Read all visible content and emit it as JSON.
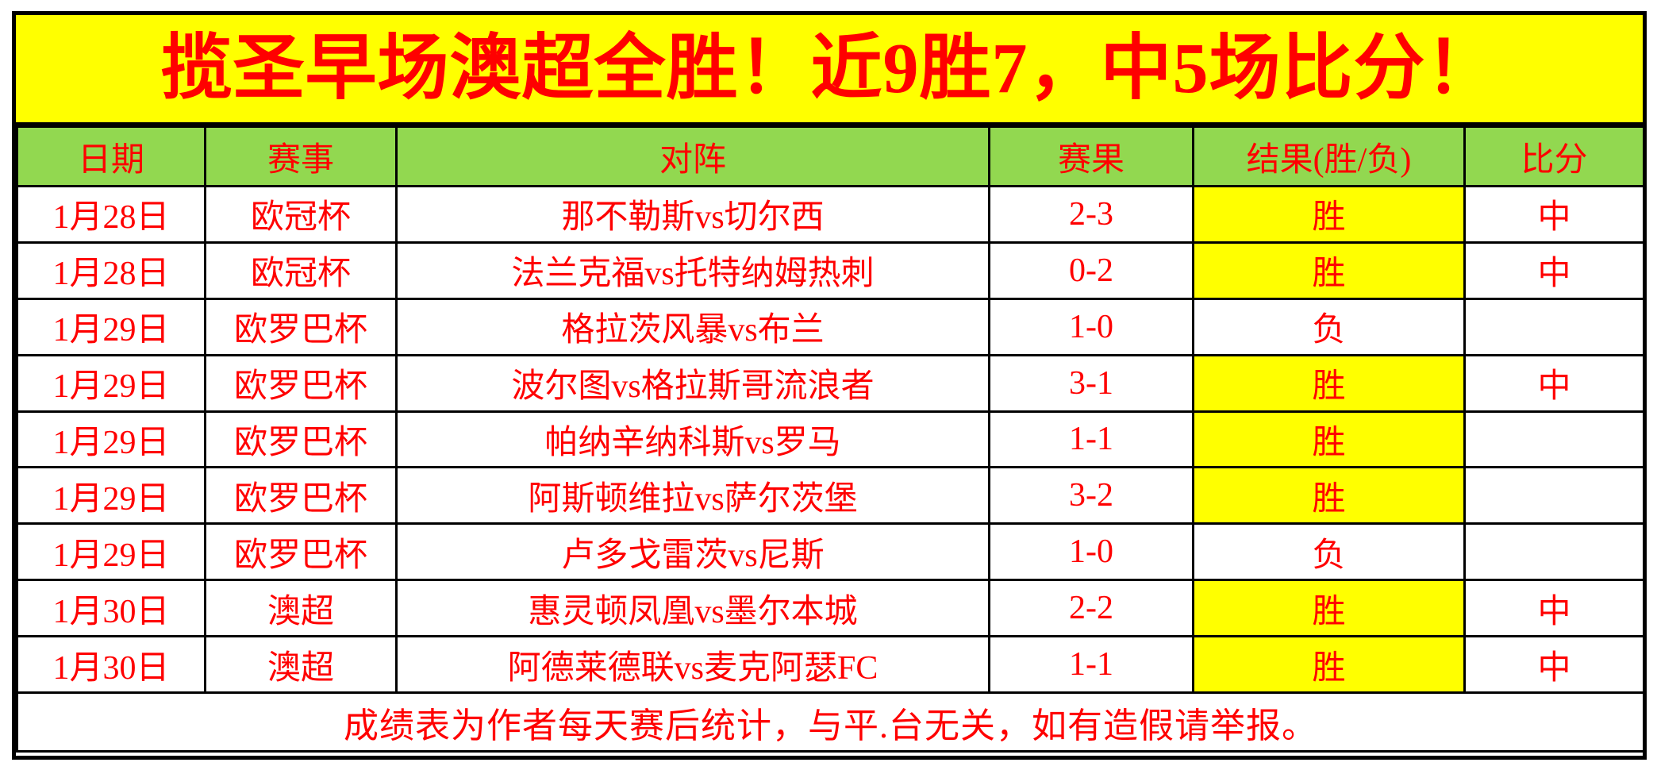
{
  "title": "揽圣早场澳超全胜！近9胜7，中5场比分！",
  "colors": {
    "banner_bg": "#FFFF00",
    "header_bg": "#92D850",
    "accent_red": "#FF0000",
    "win_cell_bg": "#FFFF00",
    "lose_text": "#000000",
    "border": "#000000"
  },
  "table": {
    "columns": [
      "日期",
      "赛事",
      "对阵",
      "赛果",
      "结果(胜/负)",
      "比分"
    ],
    "rows": [
      {
        "date": "1月28日",
        "competition": "欧冠杯",
        "match": "那不勒斯vs切尔西",
        "score": "2-3",
        "result": "胜",
        "result_win": true,
        "hit": "中"
      },
      {
        "date": "1月28日",
        "competition": "欧冠杯",
        "match": "法兰克福vs托特纳姆热刺",
        "score": "0-2",
        "result": "胜",
        "result_win": true,
        "hit": "中"
      },
      {
        "date": "1月29日",
        "competition": "欧罗巴杯",
        "match": "格拉茨风暴vs布兰",
        "score": "1-0",
        "result": "负",
        "result_win": false,
        "hit": ""
      },
      {
        "date": "1月29日",
        "competition": "欧罗巴杯",
        "match": "波尔图vs格拉斯哥流浪者",
        "score": "3-1",
        "result": "胜",
        "result_win": true,
        "hit": "中"
      },
      {
        "date": "1月29日",
        "competition": "欧罗巴杯",
        "match": "帕纳辛纳科斯vs罗马",
        "score": "1-1",
        "result": "胜",
        "result_win": true,
        "hit": ""
      },
      {
        "date": "1月29日",
        "competition": "欧罗巴杯",
        "match": "阿斯顿维拉vs萨尔茨堡",
        "score": "3-2",
        "result": "胜",
        "result_win": true,
        "hit": ""
      },
      {
        "date": "1月29日",
        "competition": "欧罗巴杯",
        "match": "卢多戈雷茨vs尼斯",
        "score": "1-0",
        "result": "负",
        "result_win": false,
        "hit": ""
      },
      {
        "date": "1月30日",
        "competition": "澳超",
        "match": "惠灵顿凤凰vs墨尔本城",
        "score": "2-2",
        "result": "胜",
        "result_win": true,
        "hit": "中"
      },
      {
        "date": "1月30日",
        "competition": "澳超",
        "match": "阿德莱德联vs麦克阿瑟FC",
        "score": "1-1",
        "result": "胜",
        "result_win": true,
        "hit": "中"
      }
    ],
    "footer": "成绩表为作者每天赛后统计，与平.台无关，如有造假请举报。"
  }
}
